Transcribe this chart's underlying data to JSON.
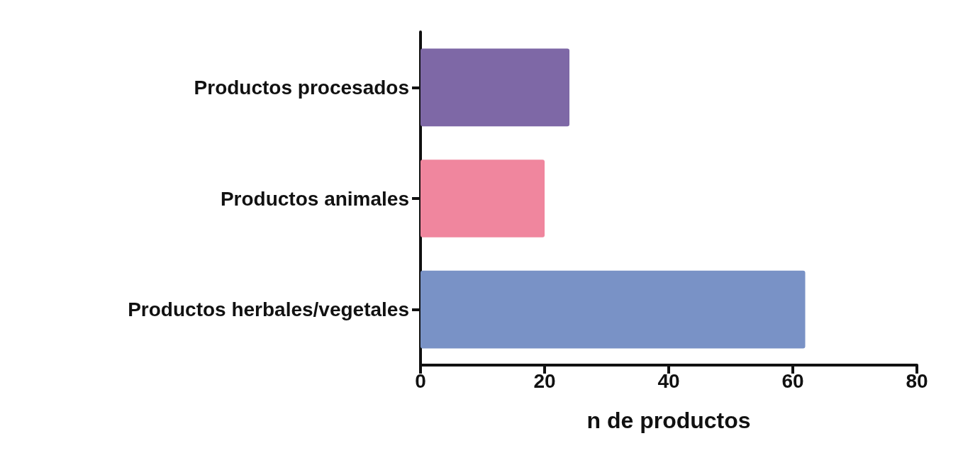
{
  "chart_data": {
    "type": "bar",
    "orientation": "horizontal",
    "categories": [
      "Productos procesados",
      "Productos animales",
      "Productos herbales/vegetales"
    ],
    "values": [
      24,
      20,
      62
    ],
    "colors": [
      "#7e68a6",
      "#f0869e",
      "#7992c6"
    ],
    "xlabel": "n de productos",
    "xlim": [
      0,
      80
    ],
    "xticks": [
      0,
      20,
      40,
      60,
      80
    ],
    "grid": false
  }
}
